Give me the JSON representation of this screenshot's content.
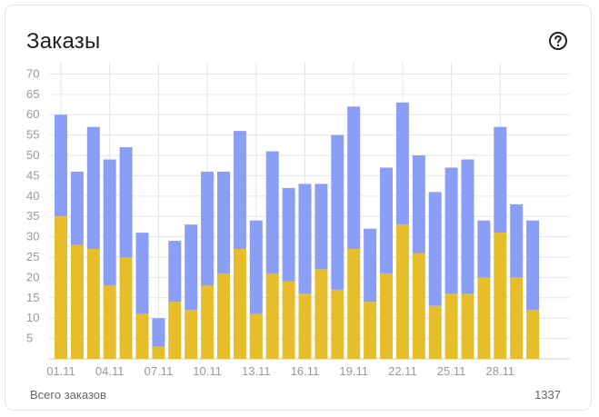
{
  "widget": {
    "title": "Заказы",
    "help_icon": "question-circle-icon",
    "total_label": "Всего заказов",
    "total_value": "1337"
  },
  "colors": {
    "series_total": "#8a9ef5",
    "series_part": "#e6bd2a",
    "grid": "#e6e6e6",
    "axis_text": "#999999"
  },
  "chart_data": {
    "type": "bar",
    "stacked": true,
    "categories": [
      "01.11",
      "02.11",
      "03.11",
      "04.11",
      "05.11",
      "06.11",
      "07.11",
      "08.11",
      "09.11",
      "10.11",
      "11.11",
      "12.11",
      "13.11",
      "14.11",
      "15.11",
      "16.11",
      "17.11",
      "18.11",
      "19.11",
      "20.11",
      "21.11",
      "22.11",
      "23.11",
      "24.11",
      "25.11",
      "26.11",
      "27.11",
      "28.11",
      "29.11",
      "30.11"
    ],
    "x_tick_labels": [
      "01.11",
      "04.11",
      "07.11",
      "10.11",
      "13.11",
      "16.11",
      "19.11",
      "22.11",
      "25.11",
      "28.11"
    ],
    "series": [
      {
        "values": [
          35,
          28,
          27,
          18,
          25,
          11,
          3,
          14,
          12,
          18,
          21,
          27,
          11,
          21,
          19,
          16,
          22,
          17,
          27,
          14,
          21,
          33,
          26,
          13,
          16,
          16,
          20,
          31,
          20,
          12
        ]
      },
      {
        "values": [
          25,
          18,
          30,
          31,
          27,
          20,
          7,
          15,
          21,
          28,
          25,
          29,
          23,
          30,
          23,
          27,
          21,
          38,
          35,
          18,
          26,
          30,
          24,
          28,
          31,
          33,
          14,
          26,
          18,
          22
        ]
      }
    ],
    "totals": [
      60,
      46,
      57,
      49,
      52,
      31,
      10,
      29,
      33,
      46,
      46,
      56,
      34,
      51,
      42,
      43,
      43,
      55,
      62,
      32,
      47,
      63,
      50,
      41,
      47,
      49,
      34,
      57,
      38,
      34
    ],
    "ylim": [
      0,
      73
    ],
    "y_ticks": [
      5,
      10,
      15,
      20,
      25,
      30,
      35,
      40,
      45,
      50,
      55,
      60,
      65,
      70
    ],
    "grid": true
  }
}
